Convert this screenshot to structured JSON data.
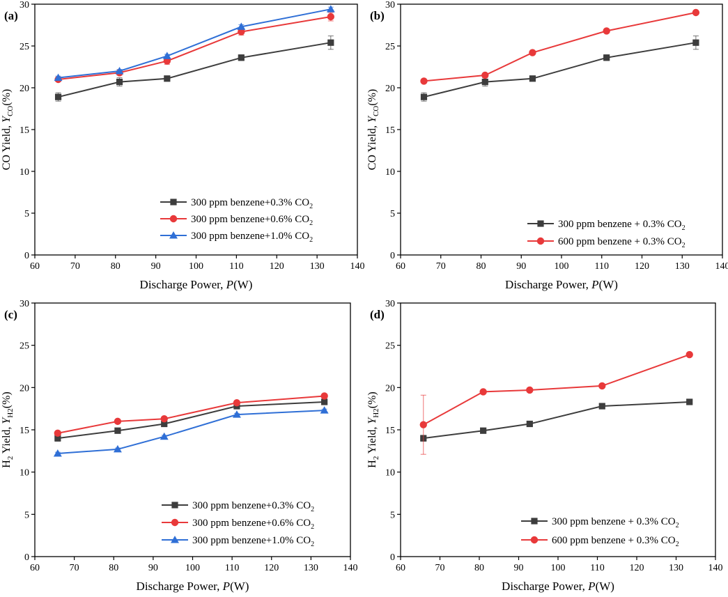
{
  "colors": {
    "series1": "#3d3d3d",
    "series2": "#e8393a",
    "series3": "#2f6fd6"
  },
  "chart_data": [
    {
      "type": "line",
      "panel_label": "(a)",
      "xlabel": "Discharge Power, ",
      "xlabel_var": "P",
      "xlabel_unit": "(W)",
      "ylabel": "CO Yield, ",
      "ylabel_var": "Y",
      "ylabel_sub": "CO",
      "ylabel_unit": "(%)",
      "xlim": [
        60,
        140
      ],
      "ylim": [
        0,
        30
      ],
      "xticks": [
        "60",
        "70",
        "80",
        "90",
        "100",
        "110",
        "120",
        "130",
        "140"
      ],
      "yticks": [
        "0",
        "5",
        "10",
        "15",
        "20",
        "25",
        "30"
      ],
      "x": [
        65.8,
        81,
        92.8,
        111.2,
        133.4
      ],
      "legend_position": "bottom-right",
      "series": [
        {
          "name": "300 ppm benzene+0.3% CO",
          "name_sub": "2",
          "marker": "square",
          "values": [
            18.9,
            20.7,
            21.1,
            23.6,
            25.4
          ],
          "errors": [
            0.5,
            0.5,
            0.2,
            0.35,
            0.8
          ]
        },
        {
          "name": "300 ppm benzene+0.6% CO",
          "name_sub": "2",
          "marker": "circle",
          "values": [
            21.0,
            21.8,
            23.2,
            26.7,
            28.5
          ],
          "errors": [
            0.25,
            0.3,
            0.4,
            0.4,
            0.5
          ]
        },
        {
          "name": "300 ppm benzene+1.0% CO",
          "name_sub": "2",
          "marker": "triangle",
          "values": [
            21.2,
            22.0,
            23.8,
            27.3,
            29.4
          ],
          "errors": [
            0.2,
            0.2,
            0.2,
            0.25,
            0.25
          ]
        }
      ]
    },
    {
      "type": "line",
      "panel_label": "(b)",
      "xlabel": "Discharge Power, ",
      "xlabel_var": "P",
      "xlabel_unit": "(W)",
      "ylabel": "CO Yield, ",
      "ylabel_var": "Y",
      "ylabel_sub": "CO",
      "ylabel_unit": "(%)",
      "xlim": [
        60,
        140
      ],
      "ylim": [
        0,
        30
      ],
      "xticks": [
        "60",
        "70",
        "80",
        "90",
        "100",
        "110",
        "120",
        "130",
        "140"
      ],
      "yticks": [
        "0",
        "5",
        "10",
        "15",
        "20",
        "25",
        "30"
      ],
      "x": [
        65.8,
        81,
        92.8,
        111.2,
        133.4
      ],
      "legend_position": "bottom-right",
      "series": [
        {
          "name": "300 ppm benzene + 0.3% CO",
          "name_sub": "2",
          "marker": "square",
          "values": [
            18.9,
            20.7,
            21.1,
            23.6,
            25.4
          ],
          "errors": [
            0.5,
            0.5,
            0.2,
            0.35,
            0.8
          ]
        },
        {
          "name": "600 ppm benzene + 0.3% CO",
          "name_sub": "2",
          "marker": "circle",
          "values": [
            20.8,
            21.5,
            24.2,
            26.8,
            29.0
          ],
          "errors": [
            0.15,
            0.15,
            0.2,
            0.2,
            0.2
          ]
        }
      ]
    },
    {
      "type": "line",
      "panel_label": "(c)",
      "xlabel": "Discharge Power, ",
      "xlabel_var": "P",
      "xlabel_unit": "(W)",
      "ylabel": " Yield, ",
      "ylabel_pre": "H",
      "ylabel_pre_sub": "2",
      "ylabel_var": "Y",
      "ylabel_sub": "H2",
      "ylabel_unit": "(%)",
      "xlim": [
        60,
        140
      ],
      "ylim": [
        0,
        30
      ],
      "xticks": [
        "60",
        "70",
        "80",
        "90",
        "100",
        "110",
        "120",
        "130",
        "140"
      ],
      "yticks": [
        "0",
        "5",
        "10",
        "15",
        "20",
        "25",
        "30"
      ],
      "x": [
        65.8,
        81,
        92.8,
        111.2,
        133.4
      ],
      "legend_position": "bottom-right",
      "series": [
        {
          "name": "300 ppm benzene+0.3% CO",
          "name_sub": "2",
          "marker": "square",
          "values": [
            14.0,
            14.9,
            15.7,
            17.8,
            18.3
          ],
          "errors": [
            0.35,
            0.3,
            0.25,
            0.3,
            0.3
          ]
        },
        {
          "name": "300 ppm benzene+0.6% CO",
          "name_sub": "2",
          "marker": "circle",
          "values": [
            14.6,
            16.0,
            16.3,
            18.2,
            19.0
          ],
          "errors": [
            0.2,
            0.2,
            0.2,
            0.2,
            0.2
          ]
        },
        {
          "name": "300 ppm benzene+1.0% CO",
          "name_sub": "2",
          "marker": "triangle",
          "values": [
            12.2,
            12.7,
            14.2,
            16.8,
            17.3
          ],
          "errors": [
            0.15,
            0.15,
            0.15,
            0.15,
            0.15
          ]
        }
      ]
    },
    {
      "type": "line",
      "panel_label": "(d)",
      "xlabel": "Discharge Power, ",
      "xlabel_var": "P",
      "xlabel_unit": "(W)",
      "ylabel": " Yield, ",
      "ylabel_pre": "H",
      "ylabel_pre_sub": "2",
      "ylabel_var": "Y",
      "ylabel_sub": "H2",
      "ylabel_unit": "(%)",
      "xlim": [
        60,
        140
      ],
      "ylim": [
        0,
        30
      ],
      "xticks": [
        "60",
        "70",
        "80",
        "90",
        "100",
        "110",
        "120",
        "130",
        "140"
      ],
      "yticks": [
        "0",
        "5",
        "10",
        "15",
        "20",
        "25",
        "30"
      ],
      "x": [
        65.8,
        81,
        92.8,
        111.2,
        133.4
      ],
      "legend_position": "bottom-right",
      "series": [
        {
          "name": "300 ppm benzene + 0.3% CO",
          "name_sub": "2",
          "marker": "square",
          "values": [
            14.0,
            14.9,
            15.7,
            17.8,
            18.3
          ],
          "errors": [
            0.35,
            0.3,
            0.25,
            0.3,
            0.3
          ]
        },
        {
          "name": "600 ppm benzene + 0.3% CO",
          "name_sub": "2",
          "marker": "circle",
          "values": [
            15.6,
            19.5,
            19.7,
            20.2,
            23.9
          ],
          "errors": [
            3.5,
            0.15,
            0.15,
            0.15,
            0.15
          ]
        }
      ]
    }
  ]
}
